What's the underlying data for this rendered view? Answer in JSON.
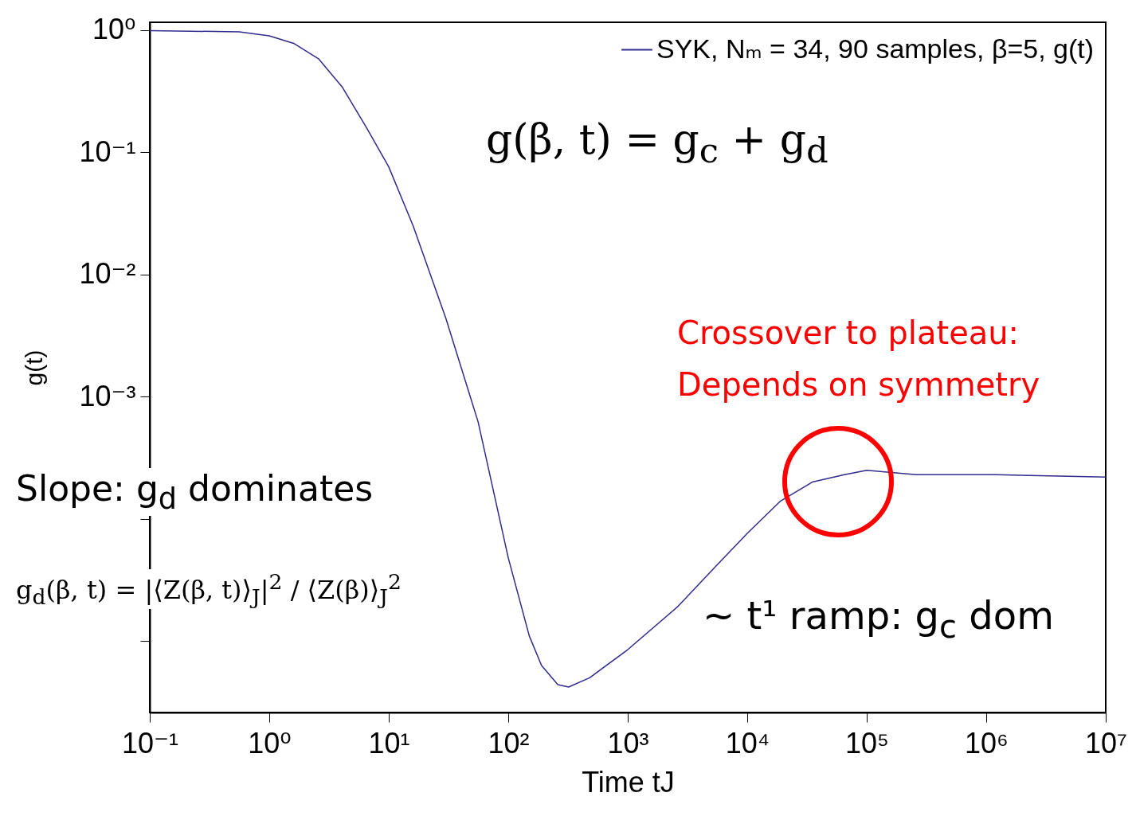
{
  "chart_data": {
    "type": "line",
    "xlabel": "Time tJ",
    "ylabel": "g(t)",
    "x": [
      0.1,
      0.56,
      1,
      1.6,
      2.6,
      4.1,
      6.5,
      10,
      16,
      30,
      56,
      100,
      150,
      190,
      260,
      320,
      480,
      1000,
      2600,
      5600,
      10000,
      19000,
      35000,
      65000,
      100000,
      260000,
      1200000,
      10000000
    ],
    "series": [
      {
        "name": "SYK, Nₘ = 34, 90 samples, β=5, g(t)",
        "color": "#302b8f",
        "values": [
          0.99,
          0.97,
          0.9,
          0.78,
          0.58,
          0.34,
          0.16,
          0.076,
          0.025,
          0.0044,
          0.00062,
          4.8e-05,
          1.1e-05,
          6.3e-06,
          4.4e-06,
          4.2e-06,
          5e-06,
          8.5e-06,
          1.9e-05,
          4.2e-05,
          7.6e-05,
          0.00014,
          0.0002,
          0.00023,
          0.00025,
          0.00023,
          0.00023,
          0.00022
        ]
      }
    ],
    "log": "xy",
    "xlim": [
      0.1,
      10000000
    ],
    "xticks": [
      {
        "value": 0.1,
        "label": "10⁻¹"
      },
      {
        "value": 1,
        "label": "10⁰"
      },
      {
        "value": 10,
        "label": "10¹"
      },
      {
        "value": 100,
        "label": "10²"
      },
      {
        "value": 1000,
        "label": "10³"
      },
      {
        "value": 10000,
        "label": "10⁴"
      },
      {
        "value": 100000,
        "label": "10⁵"
      },
      {
        "value": 1000000,
        "label": "10⁶"
      },
      {
        "value": 10000000,
        "label": "10⁷"
      }
    ],
    "ylim": [
      2.6e-06,
      1.16
    ],
    "yticks": [
      {
        "value": 1,
        "label": "10⁰"
      },
      {
        "value": 0.1,
        "label": "10⁻¹"
      },
      {
        "value": 0.01,
        "label": "10⁻²"
      },
      {
        "value": 0.001,
        "label": "10⁻³"
      },
      {
        "value": 0.0001,
        "label": null
      },
      {
        "value": 1e-05,
        "label": null
      }
    ],
    "legend": "top right",
    "annotations": [
      "g(β, t) = g$_{c}$ + g$_{d}$",
      "Crossover to plateau:",
      "Depends on symmetry",
      "Slope: g$_{d}$ dominates",
      "g$_{d}$(β, t) = |⟨Z(β, t)⟩$_{J}$|$^{2}$ / ⟨Z(β)⟩$_{J}$$^{2}$",
      "~ t¹ ramp: g$_{c}$ dom"
    ]
  }
}
